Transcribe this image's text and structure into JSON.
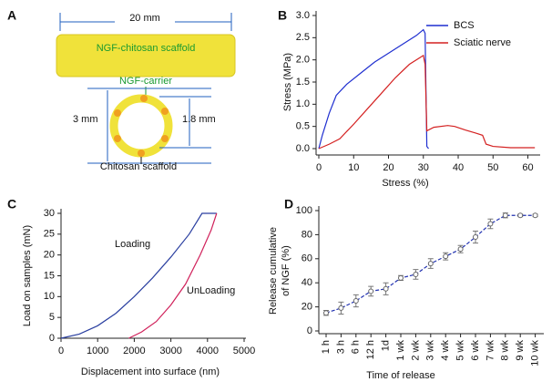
{
  "diagram": {
    "label": "A",
    "length": "20 mm",
    "scaffold": "NGF-chitosan scaffold",
    "carrier": "NGF-carrier",
    "outer": "3 mm",
    "inner": "1.8 mm",
    "ring": "Chitosan scaffold"
  },
  "chart_data": [
    {
      "type": "line",
      "label": "B",
      "x_label": "Stress (%)",
      "y_label": [
        "Stress (MPa)"
      ],
      "xlim": [
        0,
        63
      ],
      "xticks": [
        0,
        10,
        20,
        30,
        40,
        50,
        60
      ],
      "ylim": [
        0,
        3.0
      ],
      "yticks": [
        {
          "value": 0,
          "label": "0.0"
        },
        0.5,
        {
          "value": 1,
          "label": "1.0"
        },
        1.5,
        {
          "value": 2,
          "label": "2.0"
        },
        2.5,
        {
          "value": 3,
          "label": "3.0"
        }
      ],
      "legend": "top-right",
      "series": [
        {
          "name": "BCS",
          "color": "#1f2fd0",
          "x": [
            0,
            1,
            3,
            5,
            8,
            12,
            16,
            20,
            24,
            28,
            30,
            30.5,
            31,
            31.5
          ],
          "values": [
            0,
            0.3,
            0.8,
            1.2,
            1.45,
            1.7,
            1.95,
            2.15,
            2.35,
            2.55,
            2.68,
            2.6,
            0.05,
            0
          ]
        },
        {
          "name": "Sciatic nerve",
          "color": "#d42020",
          "x": [
            0,
            3,
            6,
            10,
            14,
            18,
            22,
            26,
            29,
            30,
            30.5,
            31,
            33,
            37,
            39,
            42,
            45,
            47,
            48,
            50,
            55,
            62
          ],
          "values": [
            0,
            0.1,
            0.22,
            0.55,
            0.9,
            1.25,
            1.6,
            1.9,
            2.05,
            2.1,
            1.9,
            0.4,
            0.48,
            0.52,
            0.5,
            0.42,
            0.35,
            0.3,
            0.1,
            0.05,
            0.02,
            0.02
          ]
        }
      ]
    },
    {
      "type": "line",
      "label": "C",
      "x_label": "Displacement into surface (nm)",
      "y_label": [
        "Load on samples (mN)"
      ],
      "xlim": [
        0,
        5000
      ],
      "xticks": [
        0,
        1000,
        2000,
        3000,
        4000,
        5000
      ],
      "ylim": [
        0,
        30
      ],
      "yticks": [
        0,
        5,
        10,
        15,
        20,
        25,
        30
      ],
      "series": [
        {
          "name": "Loading",
          "color": "#2a3fa0",
          "x": [
            0,
            500,
            1000,
            1500,
            2000,
            2500,
            3000,
            3500,
            3850,
            4250
          ],
          "values": [
            0,
            1,
            3,
            6,
            10,
            14.5,
            19.5,
            25,
            30,
            30
          ]
        },
        {
          "name": "UnLoading",
          "color": "#d0205a",
          "x": [
            1850,
            2200,
            2600,
            3000,
            3400,
            3800,
            4100,
            4250
          ],
          "values": [
            0,
            1.5,
            4,
            8,
            13,
            20,
            26,
            30
          ]
        }
      ]
    },
    {
      "type": "errorline",
      "label": "D",
      "x_label": "Time of release",
      "y_label": [
        "Release cumulative",
        "of NGF (%)"
      ],
      "categories": [
        "1 h",
        "3 h",
        "6 h",
        "12 h",
        "1d",
        "1 wk",
        "2 wk",
        "3 wk",
        "4 wk",
        "5 wk",
        "6 wk",
        "7 wk",
        "8 wk",
        "9 wk",
        "10 wk"
      ],
      "ylim": [
        0,
        100
      ],
      "yticks": [
        0,
        20,
        40,
        60,
        80,
        100
      ],
      "series": [
        {
          "color": "#2030b0",
          "values": [
            15,
            19,
            25,
            33,
            35,
            44,
            47,
            56,
            62,
            68,
            78,
            89,
            96,
            96,
            96
          ],
          "errors": [
            2,
            5,
            5,
            4,
            5,
            2,
            4,
            4,
            3,
            3,
            5,
            4,
            2,
            1,
            1
          ]
        }
      ]
    }
  ]
}
